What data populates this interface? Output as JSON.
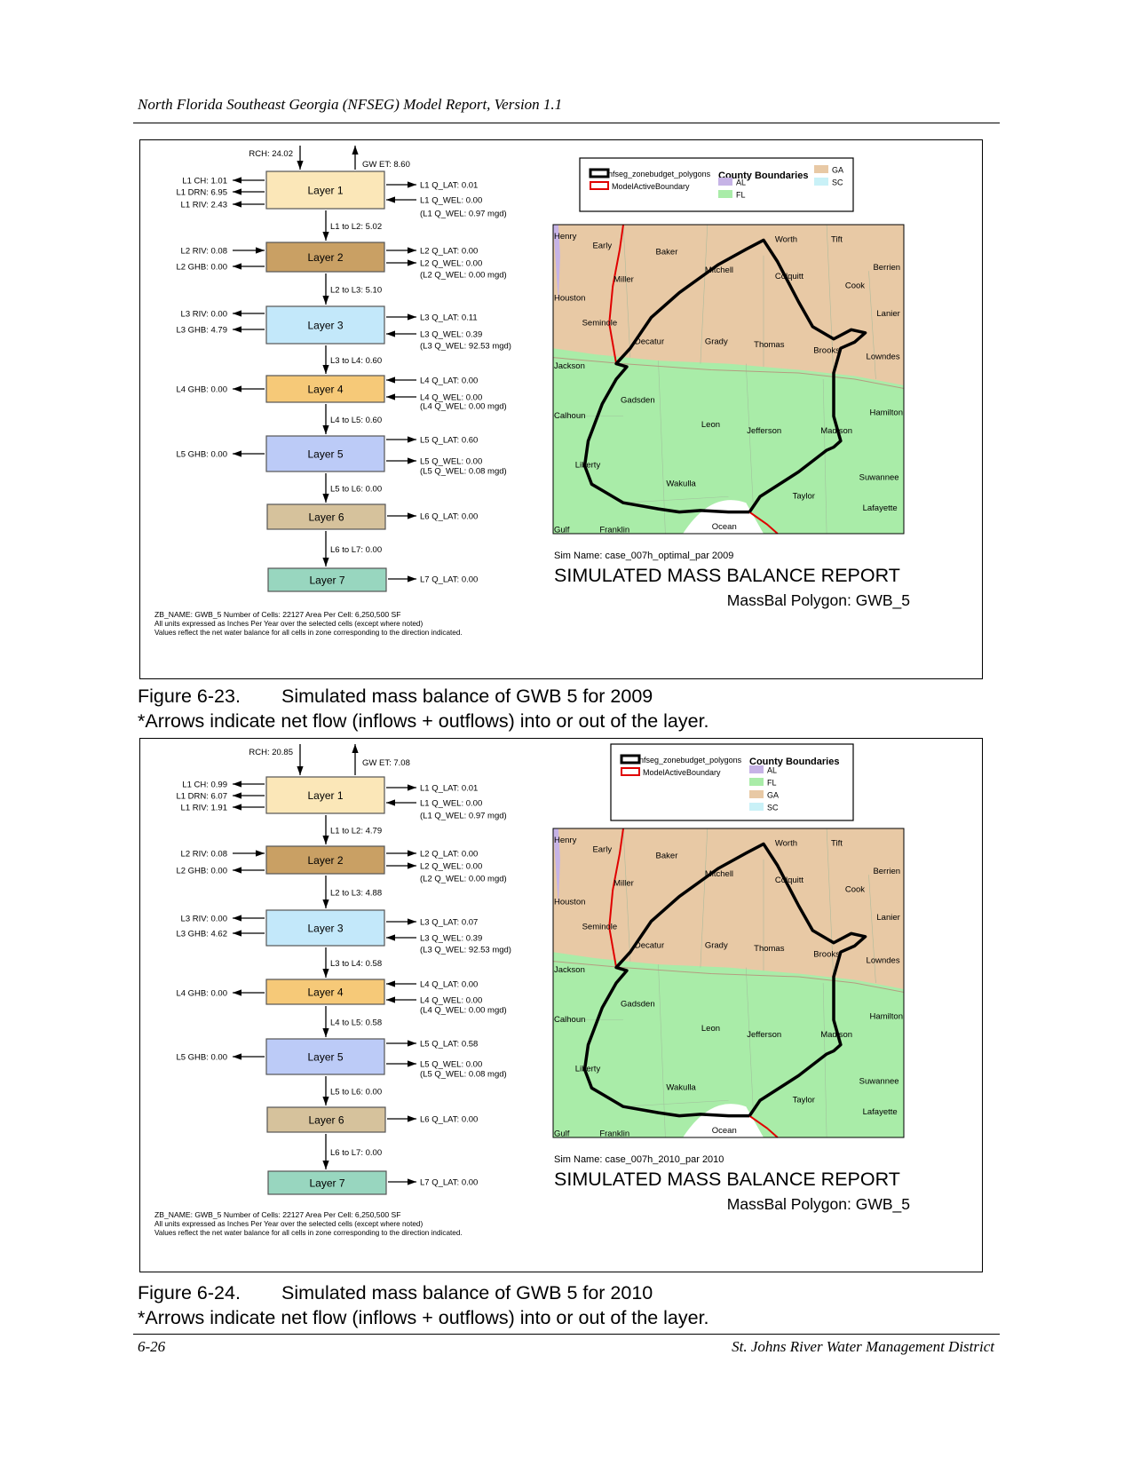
{
  "header": "North Florida Southeast Georgia (NFSEG) Model Report, Version 1.1",
  "footer": {
    "page": "6-26",
    "org": "St. Johns River Water Management District"
  },
  "arrow_note": "*Arrows indicate net flow (inflows + outflows) into or out of the layer.",
  "figures": [
    {
      "caption_num": "Figure 6-23.",
      "caption_text": "Simulated mass balance of GWB 5 for 2009",
      "rch": "RCH: 24.02",
      "gwet": "GW ET:  8.60",
      "layers": [
        "Layer 1",
        "Layer 2",
        "Layer 3",
        "Layer 4",
        "Layer 5",
        "Layer 6",
        "Layer 7"
      ],
      "between": [
        "L1 to L2:  5.02",
        "L2 to L3:  5.10",
        "L3 to L4:  0.60",
        "L4 to L5:  0.60",
        "L5 to L6:  0.00",
        "L6 to L7:  0.00"
      ],
      "left_labels": [
        [
          "L1 CH:  1.01",
          "L1 DRN:  6.95",
          "L1 RIV:  2.43"
        ],
        [
          "L2 RIV:  0.08",
          "L2 GHB:  0.00"
        ],
        [
          "L3 RIV:  0.00",
          "L3 GHB:  4.79"
        ],
        [
          "L4 GHB:  0.00"
        ],
        [
          "L5 GHB:  0.00"
        ],
        [],
        []
      ],
      "right_labels": [
        [
          "L1 Q_LAT:  0.01",
          "L1 Q_WEL:  0.00",
          "(L1 Q_WEL:  0.97 mgd)"
        ],
        [
          "L2 Q_LAT:  0.00",
          "L2 Q_WEL:  0.00",
          "(L2 Q_WEL:  0.00 mgd)"
        ],
        [
          "L3 Q_LAT:  0.11",
          "L3 Q_WEL:  0.39",
          "(L3 Q_WEL: 92.53 mgd)"
        ],
        [
          "L4 Q_LAT:  0.00",
          "L4 Q_WEL:  0.00",
          "(L4 Q_WEL:  0.00 mgd)"
        ],
        [
          "L5 Q_LAT:  0.60",
          "L5 Q_WEL:  0.00",
          "(L5 Q_WEL:  0.08 mgd)"
        ],
        [
          "L6 Q_LAT:  0.00"
        ],
        [
          "L7 Q_LAT:  0.00"
        ]
      ],
      "notes": [
        "ZB_NAME: GWB_5   Number of Cells: 22127   Area Per Cell: 6,250,500 SF",
        "All units expressed as Inches Per Year over the selected cells (except where noted)",
        "Values reflect the net water balance for all cells in zone corresponding to the direction indicated."
      ],
      "legend": {
        "polygons": "nfseg_zonebudget_polygons",
        "boundary": "ModelActiveBoundary",
        "county_title": "County Boundaries",
        "states": [
          "AL",
          "FL",
          "GA",
          "SC"
        ]
      },
      "sim_name": "Sim Name: case_007h_optimal_par     2009",
      "report_title": "SIMULATED MASS BALANCE REPORT",
      "polygon": "MassBal Polygon: GWB_5",
      "counties": [
        "Henry",
        "Early",
        "Baker",
        "Worth",
        "Tift",
        "Berrien",
        "Miller",
        "Mitchell",
        "Colquitt",
        "Cook",
        "Houston",
        "Lanier",
        "Seminole",
        "Decatur",
        "Grady",
        "Thomas",
        "Brooks",
        "Lowndes",
        "Jackson",
        "Gadsden",
        "Calhoun",
        "Leon",
        "Jefferson",
        "Madison",
        "Hamilton",
        "Liberty",
        "Wakulla",
        "Suwannee",
        "Taylor",
        "Lafayette",
        "Gulf",
        "Franklin",
        "Ocean"
      ]
    },
    {
      "caption_num": "Figure 6-24.",
      "caption_text": "Simulated mass balance of GWB 5 for 2010",
      "rch": "RCH: 20.85",
      "gwet": "GW ET:  7.08",
      "layers": [
        "Layer 1",
        "Layer 2",
        "Layer 3",
        "Layer 4",
        "Layer 5",
        "Layer 6",
        "Layer 7"
      ],
      "between": [
        "L1 to L2:  4.79",
        "L2 to L3:  4.88",
        "L3 to L4:  0.58",
        "L4 to L5:  0.58",
        "L5 to L6:  0.00",
        "L6 to L7:  0.00"
      ],
      "left_labels": [
        [
          "L1 CH:  0.99",
          "L1 DRN:  6.07",
          "L1 RIV:  1.91"
        ],
        [
          "L2 RIV:  0.08",
          "L2 GHB:  0.00"
        ],
        [
          "L3 RIV:  0.00",
          "L3 GHB:  4.62"
        ],
        [
          "L4 GHB:  0.00"
        ],
        [
          "L5 GHB:  0.00"
        ],
        [],
        []
      ],
      "right_labels": [
        [
          "L1 Q_LAT:  0.01",
          "L1 Q_WEL:  0.00",
          "(L1 Q_WEL:  0.97 mgd)"
        ],
        [
          "L2 Q_LAT:  0.00",
          "L2 Q_WEL:  0.00",
          "(L2 Q_WEL:  0.00 mgd)"
        ],
        [
          "L3 Q_LAT:  0.07",
          "L3 Q_WEL:  0.39",
          "(L3 Q_WEL: 92.53 mgd)"
        ],
        [
          "L4 Q_LAT:  0.00",
          "L4 Q_WEL:  0.00",
          "(L4 Q_WEL:  0.00 mgd)"
        ],
        [
          "L5 Q_LAT:  0.58",
          "L5 Q_WEL:  0.00",
          "(L5 Q_WEL:  0.08 mgd)"
        ],
        [
          "L6 Q_LAT:  0.00"
        ],
        [
          "L7 Q_LAT:  0.00"
        ]
      ],
      "notes": [
        "ZB_NAME: GWB_5   Number of Cells: 22127   Area Per Cell: 6,250,500 SF",
        "All units expressed as Inches Per Year over the selected cells (except where noted)",
        "Values reflect the net water balance for all cells in zone corresponding to the direction indicated."
      ],
      "legend": {
        "polygons": "nfseg_zonebudget_polygons",
        "boundary": "ModelActiveBoundary",
        "county_title": "County Boundaries",
        "states": [
          "AL",
          "FL",
          "GA",
          "SC"
        ]
      },
      "sim_name": "Sim Name: case_007h_2010_par     2010",
      "report_title": "SIMULATED MASS BALANCE REPORT",
      "polygon": "MassBal Polygon: GWB_5",
      "counties": [
        "Henry",
        "Early",
        "Baker",
        "Worth",
        "Tift",
        "Berrien",
        "Miller",
        "Mitchell",
        "Colquitt",
        "Cook",
        "Houston",
        "Lanier",
        "Seminole",
        "Decatur",
        "Grady",
        "Thomas",
        "Brooks",
        "Lowndes",
        "Jackson",
        "Gadsden",
        "Calhoun",
        "Leon",
        "Jefferson",
        "Madison",
        "Hamilton",
        "Liberty",
        "Wakulla",
        "Suwannee",
        "Taylor",
        "Lafayette",
        "Gulf",
        "Franklin",
        "Ocean"
      ]
    }
  ],
  "colors": {
    "layers": [
      "#fbe7b8",
      "#c9a064",
      "#c3e8fa",
      "#f6c978",
      "#bccbf7",
      "#d6c29c",
      "#98d6bf"
    ],
    "ga": "#e8c9a5",
    "fl": "#a9eca8",
    "al": "#c6b3e6",
    "sc": "#c9f1f7",
    "boundary": "#e00000",
    "polygon": "#000000"
  },
  "icons": {
    "arrow": "arrow-icon"
  }
}
